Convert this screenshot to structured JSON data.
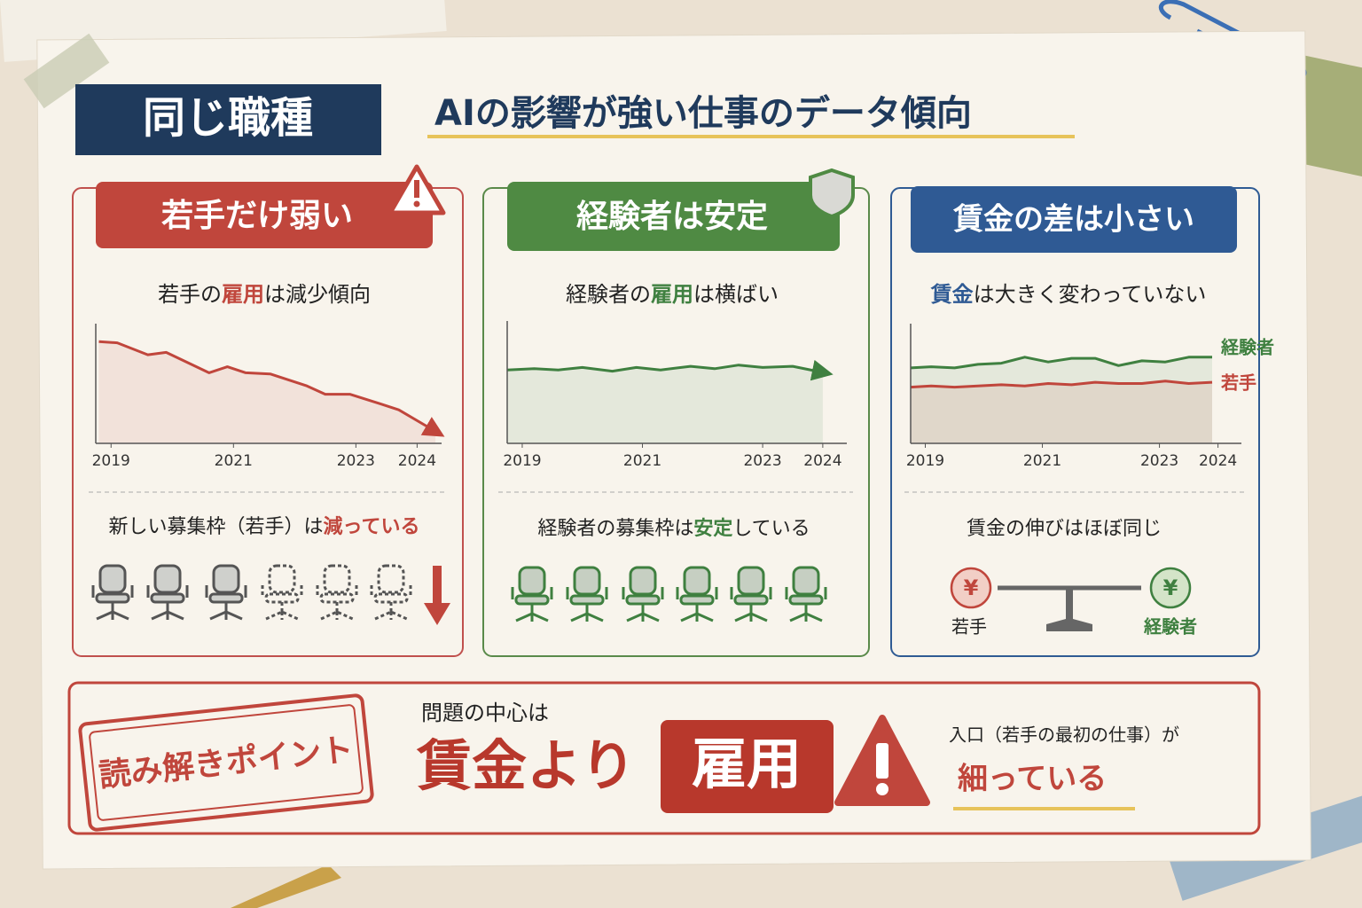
{
  "header": {
    "badge": "同じ職種",
    "title": "AIの影響が強い仕事のデータ傾向"
  },
  "panels": [
    {
      "heading": "若手だけ弱い",
      "caption": [
        "若手の",
        "雇用",
        "は減少傾向"
      ],
      "note": [
        "新しい募集枠（若手）は",
        "減っている"
      ]
    },
    {
      "heading": "経験者は安定",
      "caption": [
        "経験者の",
        "雇用",
        "は横ばい"
      ],
      "note": [
        "経験者の募集枠は",
        "安定",
        "している"
      ]
    },
    {
      "heading": "賃金の差は小さい",
      "caption": [
        "賃金",
        "は大きく変わっていない"
      ],
      "note": [
        "賃金の伸びはほぼ同じ"
      ],
      "currency": "¥",
      "scale_labels": [
        "若手",
        "経験者"
      ]
    }
  ],
  "chart_data": [
    {
      "type": "line",
      "area": true,
      "arrow": true,
      "x": [
        2018.8,
        2019.1,
        2019.6,
        2019.9,
        2020.6,
        2020.9,
        2021.2,
        2021.6,
        2022.2,
        2022.5,
        2022.9,
        2023.4,
        2023.7,
        2024.3
      ],
      "xlim": [
        2018.75,
        2024.4
      ],
      "xticks": [
        2019,
        2021,
        2023,
        2024
      ],
      "ylim": [
        0,
        100
      ],
      "series": [
        {
          "color": "#c0463c",
          "values": [
            85,
            84,
            74,
            76,
            59,
            64,
            59,
            58,
            48,
            41,
            41,
            33,
            28,
            10
          ]
        }
      ]
    },
    {
      "type": "line",
      "area": true,
      "arrow": true,
      "x": [
        2018.75,
        2019.2,
        2019.6,
        2020.0,
        2020.5,
        2020.9,
        2021.3,
        2021.8,
        2022.2,
        2022.6,
        2023.0,
        2023.5,
        2024.0
      ],
      "xlim": [
        2018.75,
        2024.4
      ],
      "xticks": [
        2019,
        2021,
        2023,
        2024
      ],
      "ylim": [
        0,
        100
      ],
      "series": [
        {
          "color": "#3f8040",
          "values": [
            60,
            61,
            60,
            62,
            59,
            62,
            60,
            63,
            61,
            64,
            62,
            63,
            58
          ]
        }
      ]
    },
    {
      "type": "line",
      "area": true,
      "arrow": false,
      "x": [
        2018.75,
        2019.1,
        2019.5,
        2019.9,
        2020.3,
        2020.7,
        2021.1,
        2021.5,
        2021.9,
        2022.3,
        2022.7,
        2023.1,
        2023.5,
        2023.9
      ],
      "xlim": [
        2018.75,
        2024.4
      ],
      "xticks": [
        2019,
        2021,
        2023,
        2024
      ],
      "ylim": [
        0,
        100
      ],
      "series": [
        {
          "name": "経験者",
          "color": "#3f8040",
          "values": [
            63,
            64,
            63,
            66,
            67,
            72,
            68,
            71,
            71,
            65,
            69,
            68,
            72,
            72
          ]
        },
        {
          "name": "若手",
          "color": "#c0463c",
          "values": [
            47,
            48,
            47,
            48,
            49,
            48,
            50,
            49,
            51,
            50,
            50,
            52,
            50,
            51
          ]
        }
      ]
    }
  ],
  "footer": {
    "badge": "読み解きポイント",
    "lead": "問題の中心は",
    "headline": [
      "賃金より",
      "雇用"
    ],
    "note": "入口（若手の最初の仕事）が",
    "emphasis": "細っている"
  }
}
